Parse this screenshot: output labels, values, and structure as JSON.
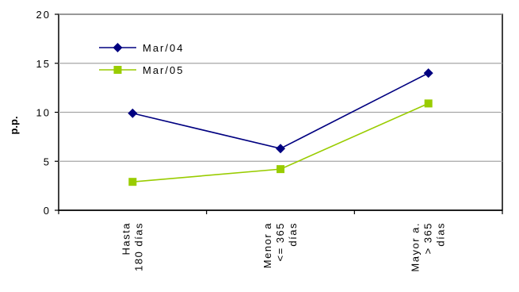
{
  "chart_data": {
    "type": "line",
    "title": "",
    "xlabel": "",
    "ylabel": "p.p.",
    "ylim": [
      0,
      20
    ],
    "yticks": [
      0,
      5,
      10,
      15,
      20
    ],
    "grid": true,
    "legend_position": "top-left",
    "categories": [
      [
        "Hasta",
        "180  días"
      ],
      [
        "Menor a",
        "<= 365",
        "días"
      ],
      [
        "Mayor a.",
        "> 365",
        "días"
      ]
    ],
    "series": [
      {
        "name": "Mar/04",
        "values": [
          9.9,
          6.3,
          14.0
        ],
        "color": "#000080",
        "marker": "diamond"
      },
      {
        "name": "Mar/05",
        "values": [
          2.9,
          4.2,
          10.9
        ],
        "color": "#99CC00",
        "marker": "square"
      }
    ]
  }
}
